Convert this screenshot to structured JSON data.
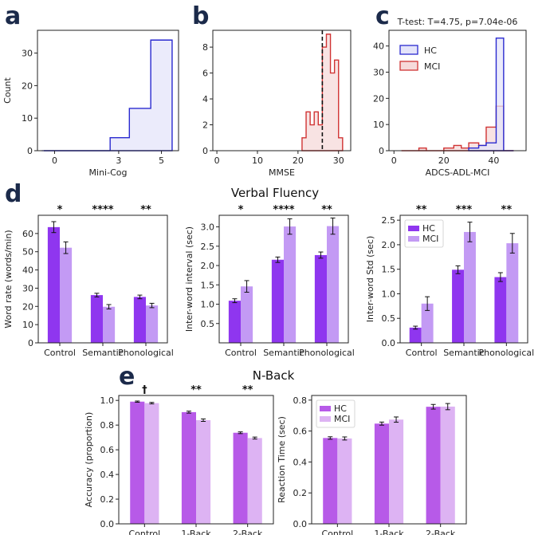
{
  "colors": {
    "hist_hc_edge": "#2a2ad0",
    "hist_hc_fill": "#e4e4fa",
    "hist_mci_edge": "#d03333",
    "hist_mci_fill": "#f6dada",
    "vf_hc": "#8f36ef",
    "vf_mci": "#c39af4",
    "nb_hc": "#b75ae8",
    "nb_mci": "#ddb3f3"
  },
  "panels": {
    "a": "a",
    "b": "b",
    "c": "c",
    "d": "d",
    "e": "e"
  },
  "section_titles": {
    "d": "Verbal Fluency",
    "e": "N-Back"
  },
  "chart_data": [
    {
      "id": "a",
      "type": "histogram",
      "xlabel": "Mini-Cog",
      "ylabel": "Count",
      "xlim": [
        -0.8,
        5.8
      ],
      "ylim": [
        0,
        37
      ],
      "xticks": [
        0,
        3,
        5
      ],
      "yticks": [
        0,
        10,
        20,
        30
      ],
      "series": [
        {
          "name": "HC",
          "color": "hist_hc",
          "edges": [
            -0.5,
            2.6,
            3.5,
            4.5,
            5.5
          ],
          "counts": [
            0,
            4,
            13,
            34
          ]
        }
      ]
    },
    {
      "id": "b",
      "type": "histogram",
      "xlabel": "MMSE",
      "ylabel": "",
      "xlim": [
        -1,
        33
      ],
      "ylim": [
        0,
        9.3
      ],
      "xticks": [
        0,
        10,
        20,
        30
      ],
      "yticks": [
        0,
        2,
        4,
        6,
        8
      ],
      "reference_line": 26,
      "series": [
        {
          "name": "MCI",
          "color": "hist_mci",
          "edges": [
            21,
            22,
            23,
            24,
            25,
            26,
            27,
            28,
            29,
            30,
            31
          ],
          "counts": [
            1,
            3,
            2,
            3,
            2,
            8,
            9,
            6,
            7,
            1
          ]
        }
      ]
    },
    {
      "id": "c",
      "type": "histogram",
      "title": "T-test: T=4.75, p=7.04e-06",
      "xlabel": "ADCS-ADL-MCI",
      "ylabel": "",
      "xlim": [
        -2,
        53
      ],
      "ylim": [
        0,
        46
      ],
      "xticks": [
        0,
        20,
        40
      ],
      "yticks": [
        0,
        10,
        20,
        30,
        40
      ],
      "legend": [
        "HC",
        "MCI"
      ],
      "series": [
        {
          "name": "MCI",
          "color": "hist_mci",
          "edges": [
            3,
            10,
            13,
            20,
            24,
            27,
            30,
            34,
            37,
            41,
            44,
            48
          ],
          "counts": [
            0,
            1,
            0,
            1,
            2,
            1,
            3,
            2,
            9,
            17,
            0
          ]
        },
        {
          "name": "HC",
          "color": "hist_hc",
          "edges": [
            30,
            34,
            37,
            41,
            44,
            48
          ],
          "counts": [
            1,
            2,
            3,
            43,
            0
          ]
        }
      ]
    },
    {
      "id": "d1",
      "type": "bar",
      "categories": [
        "Control",
        "Semantic",
        "Phonological"
      ],
      "ylabel": "Word rate (words/min)",
      "ylim": [
        0,
        70
      ],
      "yticks": [
        0,
        10,
        20,
        30,
        40,
        50,
        60
      ],
      "significance": [
        "*",
        "****",
        "**"
      ],
      "palette": "vf",
      "series": [
        {
          "name": "HC",
          "values": [
            63.5,
            26.2,
            25.2
          ],
          "err": [
            3.0,
            1.0,
            1.0
          ]
        },
        {
          "name": "MCI",
          "values": [
            52.2,
            19.8,
            20.5
          ],
          "err": [
            3.2,
            1.2,
            1.2
          ]
        }
      ]
    },
    {
      "id": "d2",
      "type": "bar",
      "categories": [
        "Control",
        "Semantic",
        "Phonological"
      ],
      "ylabel": "Inter-word interval (sec)",
      "ylim": [
        0,
        3.3
      ],
      "yticks": [
        0.5,
        1.0,
        1.5,
        2.0,
        2.5,
        3.0
      ],
      "significance": [
        "*",
        "****",
        "**"
      ],
      "palette": "vf",
      "series": [
        {
          "name": "HC",
          "values": [
            1.09,
            2.15,
            2.27
          ],
          "err": [
            0.05,
            0.07,
            0.08
          ]
        },
        {
          "name": "MCI",
          "values": [
            1.46,
            3.01,
            3.02
          ],
          "err": [
            0.15,
            0.2,
            0.21
          ]
        }
      ]
    },
    {
      "id": "d3",
      "type": "bar",
      "categories": [
        "Control",
        "Semantic",
        "Phonological"
      ],
      "ylabel": "Inter-word Std (sec)",
      "ylim": [
        0,
        2.6
      ],
      "yticks": [
        0.0,
        0.5,
        1.0,
        1.5,
        2.0,
        2.5
      ],
      "significance": [
        "**",
        "***",
        "**"
      ],
      "palette": "vf",
      "legend": [
        "HC",
        "MCI"
      ],
      "series": [
        {
          "name": "HC",
          "values": [
            0.31,
            1.49,
            1.34
          ],
          "err": [
            0.03,
            0.08,
            0.09
          ]
        },
        {
          "name": "MCI",
          "values": [
            0.8,
            2.26,
            2.03
          ],
          "err": [
            0.14,
            0.2,
            0.2
          ]
        }
      ]
    },
    {
      "id": "e1",
      "type": "bar",
      "categories": [
        "Control",
        "1-Back",
        "2-Back"
      ],
      "ylabel": "Accuracy (proportion)",
      "ylim": [
        0,
        1.04
      ],
      "yticks": [
        0.0,
        0.2,
        0.4,
        0.6,
        0.8,
        1.0
      ],
      "significance": [
        "†",
        "**",
        "**"
      ],
      "palette": "nb",
      "series": [
        {
          "name": "HC",
          "values": [
            0.99,
            0.905,
            0.738
          ],
          "err": [
            0.005,
            0.008,
            0.007
          ]
        },
        {
          "name": "MCI",
          "values": [
            0.978,
            0.84,
            0.695
          ],
          "err": [
            0.006,
            0.01,
            0.008
          ]
        }
      ]
    },
    {
      "id": "e2",
      "type": "bar",
      "categories": [
        "Control",
        "1-Back",
        "2-Back"
      ],
      "ylabel": "Reaction Time (sec)",
      "ylim": [
        0,
        0.83
      ],
      "yticks": [
        0.0,
        0.2,
        0.4,
        0.6,
        0.8
      ],
      "significance": [
        "",
        "",
        ""
      ],
      "palette": "nb",
      "legend": [
        "HC",
        "MCI"
      ],
      "series": [
        {
          "name": "HC",
          "values": [
            0.555,
            0.648,
            0.757
          ],
          "err": [
            0.008,
            0.01,
            0.015
          ]
        },
        {
          "name": "MCI",
          "values": [
            0.552,
            0.674,
            0.758
          ],
          "err": [
            0.01,
            0.017,
            0.02
          ]
        }
      ]
    }
  ]
}
